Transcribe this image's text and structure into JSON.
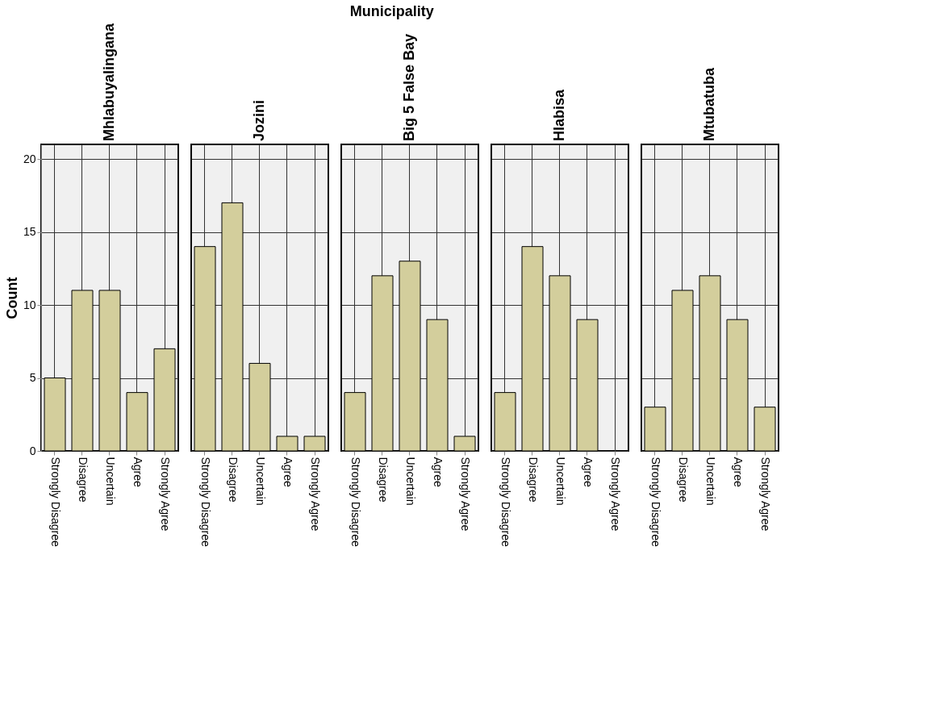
{
  "chart_data": [
    {
      "type": "bar",
      "title": "Mhlabuyalingana",
      "ylabel": "Count",
      "annotations": [
        "Municipality"
      ],
      "categories": [
        "Strongly Disagree",
        "Disagree",
        "Uncertain",
        "Agree",
        "Strongly Agree"
      ],
      "values": [
        5,
        11,
        11,
        4,
        7
      ],
      "color": "#d3ce9c",
      "ylim": [
        0,
        21
      ],
      "yticks": [
        0,
        5,
        10,
        15,
        20
      ],
      "grid": true
    },
    {
      "type": "bar",
      "title": "Jozini",
      "categories": [
        "Strongly Disagree",
        "Disagree",
        "Uncertain",
        "Agree",
        "Strongly Agree"
      ],
      "values": [
        14,
        17,
        6,
        1,
        1
      ],
      "color": "#d3ce9c",
      "ylim": [
        0,
        21
      ],
      "yticks": [
        0,
        5,
        10,
        15,
        20
      ],
      "grid": true,
      "tick_labels": "x"
    },
    {
      "type": "bar",
      "title": "Big 5 False Bay",
      "categories": [
        "Strongly Disagree",
        "Disagree",
        "Uncertain",
        "Agree",
        "Strongly Agree"
      ],
      "values": [
        4,
        12,
        13,
        9,
        1
      ],
      "color": "#d3ce9c",
      "ylim": [
        0,
        21
      ],
      "yticks": [
        0,
        5,
        10,
        15,
        20
      ],
      "grid": true,
      "tick_labels": "x"
    },
    {
      "type": "bar",
      "title": "Hlabisa",
      "categories": [
        "Strongly Disagree",
        "Disagree",
        "Uncertain",
        "Agree",
        "Strongly Agree"
      ],
      "values": [
        4,
        14,
        12,
        9,
        null
      ],
      "color": "#d3ce9c",
      "ylim": [
        0,
        21
      ],
      "yticks": [
        0,
        5,
        10,
        15,
        20
      ],
      "grid": true,
      "tick_labels": "x"
    },
    {
      "type": "bar",
      "title": "Mtubatuba",
      "categories": [
        "Strongly Disagree",
        "Disagree",
        "Uncertain",
        "Agree",
        "Strongly Agree"
      ],
      "values": [
        3,
        11,
        12,
        9,
        3
      ],
      "color": "#d3ce9c",
      "ylim": [
        0,
        21
      ],
      "yticks": [
        0,
        5,
        10,
        15,
        20
      ],
      "grid": true,
      "tick_labels": "x"
    }
  ]
}
